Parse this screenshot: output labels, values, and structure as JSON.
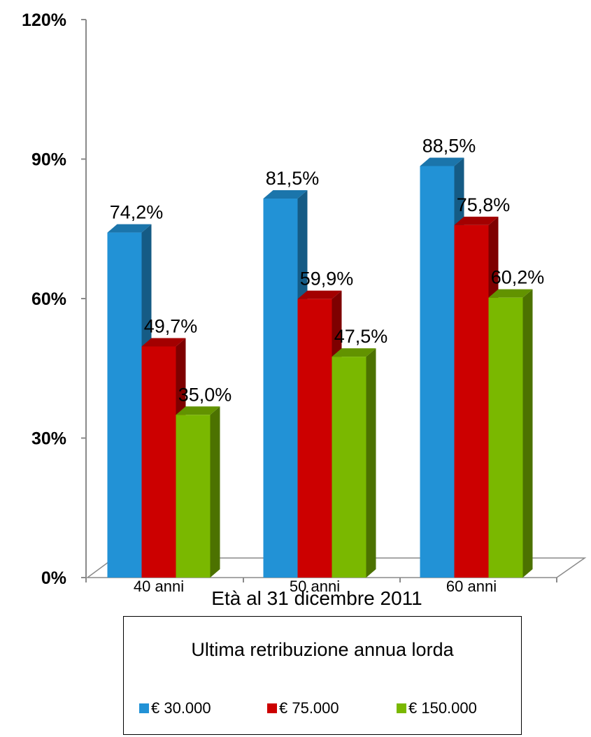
{
  "chart_data": {
    "type": "bar",
    "xlabel": "Età al 31 dicembre 2011",
    "ylabel": "",
    "ylim": [
      0,
      120
    ],
    "yticks": [
      "0%",
      "30%",
      "60%",
      "90%",
      "120%"
    ],
    "categories": [
      "40 anni",
      "50 anni",
      "60 anni"
    ],
    "grid": false,
    "legend_position": "bottom",
    "legend_title": "Ultima retribuzione annua lorda",
    "series": [
      {
        "name": "€ 30.000",
        "values": [
          74.2,
          81.5,
          88.5
        ],
        "labels": [
          "74,2%",
          "81,5%",
          "88,5%"
        ],
        "color": "#2292d6"
      },
      {
        "name": "€ 75.000",
        "values": [
          49.7,
          59.9,
          75.8
        ],
        "labels": [
          "49,7%",
          "59,9%",
          "75,8%"
        ],
        "color": "#cc0000"
      },
      {
        "name": "€ 150.000",
        "values": [
          35.0,
          47.5,
          60.2
        ],
        "labels": [
          "35,0%",
          "47,5%",
          "60,2%"
        ],
        "color": "#7ab800"
      }
    ]
  }
}
